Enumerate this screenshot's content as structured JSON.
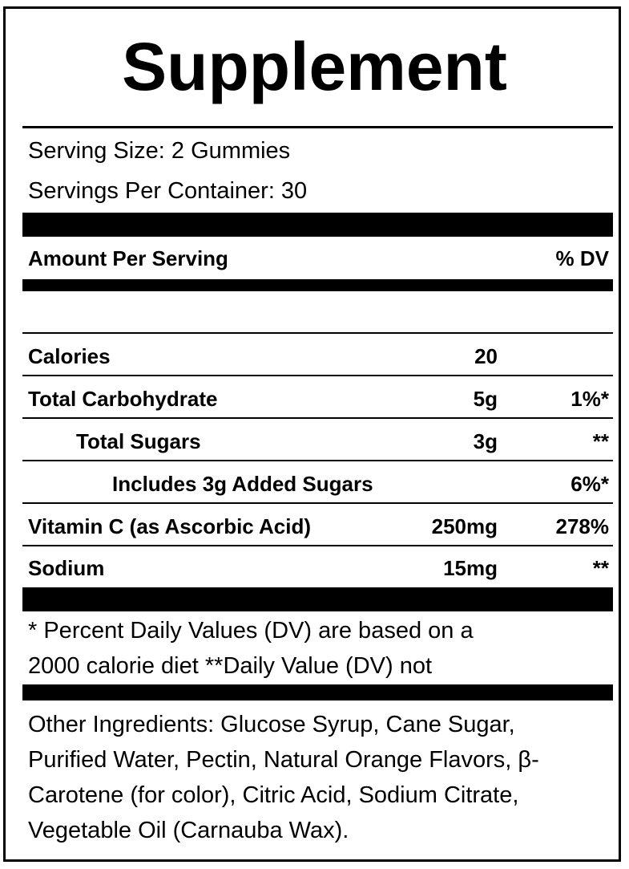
{
  "label": {
    "title": "Supplement",
    "serving_size": "Serving Size: 2 Gummies",
    "servings_per_container": "Servings Per Container: 30",
    "amount_per_serving": "Amount Per Serving",
    "dv_header": "% DV",
    "rows": [
      {
        "name": "Calories",
        "amount": "20",
        "dv": ""
      },
      {
        "name": "Total Carbohydrate",
        "amount": "5g",
        "dv": "1%*"
      },
      {
        "name": "Total Sugars",
        "amount": "3g",
        "dv": "**"
      },
      {
        "name": "Includes 3g Added Sugars",
        "amount": "",
        "dv": "6%*"
      },
      {
        "name": "Vitamin C (as Ascorbic Acid)",
        "amount": "250mg",
        "dv": "278%"
      },
      {
        "name": "Sodium",
        "amount": "15mg",
        "dv": "**"
      }
    ],
    "footnote_line1": "* Percent Daily Values (DV) are based on a",
    "footnote_line2": "2000 calorie diet **Daily Value (DV) not",
    "ingredients": [
      "Other Ingredients:  Glucose Syrup, Cane Sugar,",
      "Purified Water, Pectin, Natural Orange Flavors, β-",
      "Carotene (for color), Citric Acid, Sodium Citrate,",
      "Vegetable Oil (Carnauba Wax)."
    ]
  }
}
